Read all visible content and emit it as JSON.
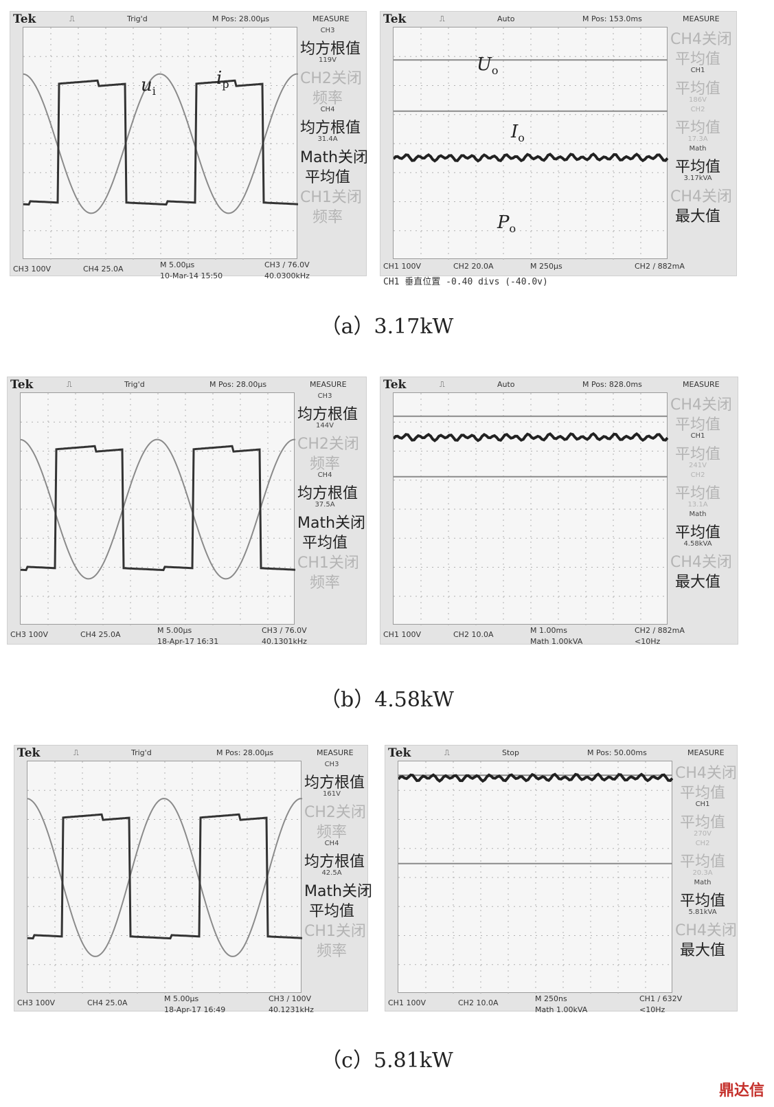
{
  "captions": {
    "a": "（a）3.17kW",
    "b": "（b）4.58kW",
    "c": "（c）5.81kW"
  },
  "watermark": "鼎达信",
  "scopes": {
    "a_left": {
      "brand": "Tek",
      "trig": "Trig'd",
      "mpos": "M Pos: 28.00μs",
      "measure": "MEASURE",
      "menu": [
        "CH3",
        "均方根值",
        "119V",
        "CH2关闭",
        "频率",
        "CH4",
        "均方根值",
        "31.4A",
        "Math关闭",
        "平均值",
        "CH1关闭",
        "频率"
      ],
      "footer": [
        "CH3 100V",
        "CH4  25.0A",
        "M 5.00μs",
        "10-Mar-14 15:50",
        "CH3 ∕ 76.0V",
        "40.0300kHz"
      ],
      "labels": {
        "ui": "u",
        "ui_sub": "i",
        "ip": "i",
        "ip_sub": "p"
      }
    },
    "a_right": {
      "brand": "Tek",
      "trig": "Auto",
      "mpos": "M Pos: 153.0ms",
      "measure": "MEASURE",
      "menu": [
        "CH4关闭",
        "平均值",
        "CH1",
        "平均值",
        "186V",
        "CH2",
        "平均值",
        "17.3A",
        "Math",
        "平均值",
        "3.17kVA",
        "CH4关闭",
        "最大值"
      ],
      "footer": [
        "CH1  100V",
        "CH2  20.0A",
        "M 250μs",
        "CH2 ∕ 882mA",
        "CH1 垂直位置 -0.40 divs (-40.0v)"
      ],
      "labels": {
        "uo": "U",
        "uo_sub": "o",
        "io": "I",
        "io_sub": "o",
        "po": "P",
        "po_sub": "o"
      }
    },
    "b_left": {
      "brand": "Tek",
      "trig": "Trig'd",
      "mpos": "M Pos: 28.00μs",
      "measure": "MEASURE",
      "menu": [
        "CH3",
        "均方根值",
        "144V",
        "CH2关闭",
        "频率",
        "CH4",
        "均方根值",
        "37.5A",
        "Math关闭",
        "平均值",
        "CH1关闭",
        "频率"
      ],
      "footer": [
        "CH3 100V",
        "CH4  25.0A",
        "M 5.00μs",
        "18-Apr-17 16:31",
        "CH3 ∕ 76.0V",
        "40.1301kHz"
      ]
    },
    "b_right": {
      "brand": "Tek",
      "trig": "Auto",
      "mpos": "M Pos: 828.0ms",
      "measure": "MEASURE",
      "menu": [
        "CH4关闭",
        "平均值",
        "CH1",
        "平均值",
        "241V",
        "CH2",
        "平均值",
        "13.1A",
        "Math",
        "平均值",
        "4.58kVA",
        "CH4关闭",
        "最大值"
      ],
      "footer": [
        "CH1  100V",
        "CH2  10.0A",
        "M 1.00ms",
        "Math 1.00kVA",
        "CH2 ∕ 882mA",
        "<10Hz"
      ]
    },
    "c_left": {
      "brand": "Tek",
      "trig": "Trig'd",
      "mpos": "M Pos: 28.00μs",
      "measure": "MEASURE",
      "menu": [
        "CH3",
        "均方根值",
        "161V",
        "CH2关闭",
        "频率",
        "CH4",
        "均方根值",
        "42.5A",
        "Math关闭",
        "平均值",
        "CH1关闭",
        "频率"
      ],
      "footer": [
        "CH3 100V",
        "CH4  25.0A",
        "M 5.00μs",
        "18-Apr-17 16:49",
        "CH3 ∕ 100V",
        "40.1231kHz"
      ]
    },
    "c_right": {
      "brand": "Tek",
      "trig": "Stop",
      "mpos": "M Pos: 50.00ms",
      "measure": "MEASURE",
      "menu": [
        "CH4关闭",
        "平均值",
        "CH1",
        "平均值",
        "270V",
        "CH2",
        "平均值",
        "20.3A",
        "Math",
        "平均值",
        "5.81kVA",
        "CH4关闭",
        "最大值"
      ],
      "footer": [
        "CH1  100V",
        "CH2  10.0A",
        "M 250ns",
        "Math 1.00kVA",
        "CH1 ∕ 632V",
        "<10Hz"
      ]
    }
  },
  "chart_data": [
    {
      "type": "line",
      "panel": "a_left",
      "series": [
        {
          "name": "u",
          "kind": "square",
          "amplitude": 0.52
        },
        {
          "name": "i",
          "kind": "sine",
          "amplitude": 0.6
        }
      ],
      "periods": 2
    },
    {
      "type": "line",
      "panel": "a_right",
      "series": [
        {
          "name": "U",
          "level": 0.72
        },
        {
          "name": "I",
          "level": 0.28
        },
        {
          "name": "P",
          "level": -0.12
        }
      ]
    },
    {
      "type": "line",
      "panel": "b_left",
      "series": [
        {
          "kind": "square",
          "amplitude": 0.52
        },
        {
          "kind": "sine",
          "amplitude": 0.6
        }
      ],
      "periods": 2
    },
    {
      "type": "line",
      "panel": "b_right",
      "series": [
        {
          "level": 0.8
        },
        {
          "level": 0.62
        },
        {
          "level": 0.28
        }
      ]
    },
    {
      "type": "line",
      "panel": "c_left",
      "series": [
        {
          "kind": "square",
          "amplitude": 0.52
        },
        {
          "kind": "sine",
          "amplitude": 0.68
        }
      ],
      "periods": 2
    },
    {
      "type": "line",
      "panel": "c_right",
      "series": [
        {
          "level": 0.88
        },
        {
          "level": 0.86
        },
        {
          "level": 0.12
        }
      ]
    }
  ]
}
